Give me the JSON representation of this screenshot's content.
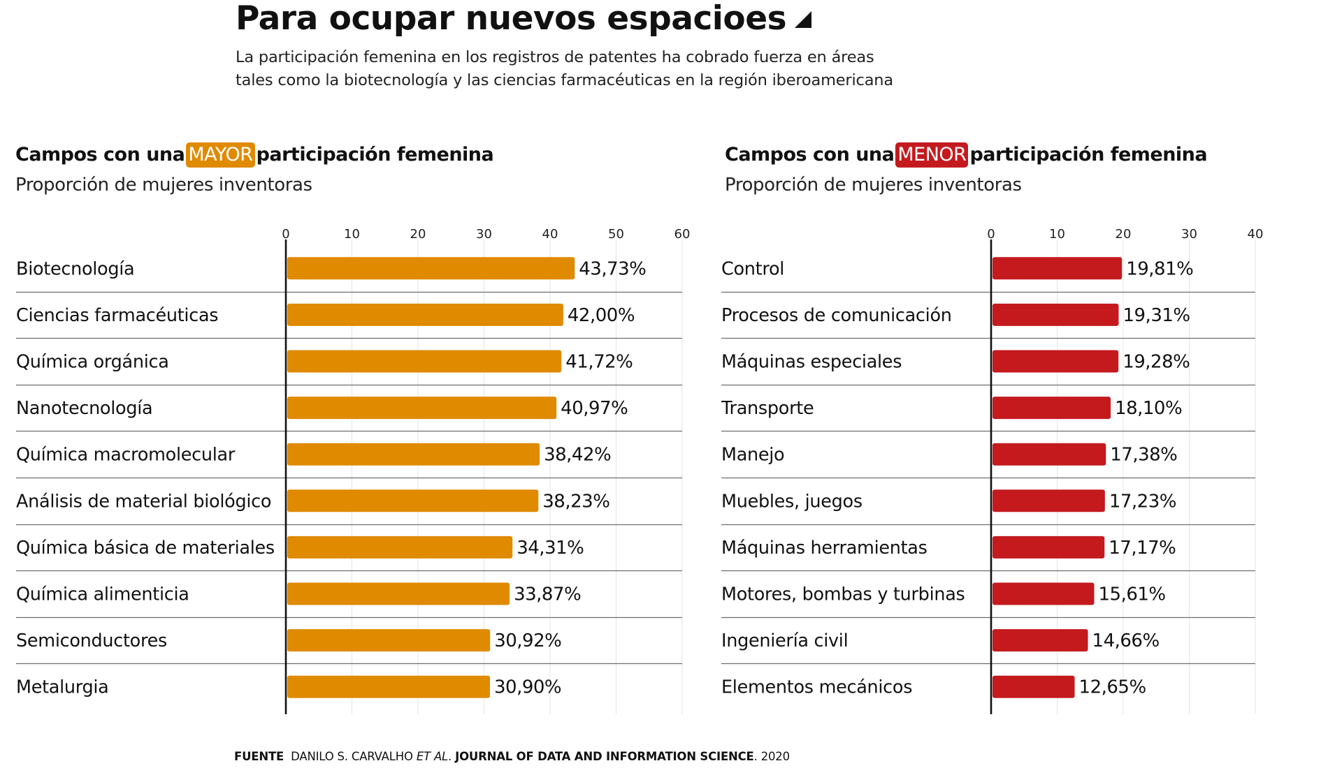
{
  "header": {
    "title": "Para ocupar nuevos espacioes",
    "subtitle_lines": [
      "La participación femenina en los registros de patentes ha cobrado fuerza en áreas",
      "tales como la biotecnología y las ciencias farmacéuticas en la región iberoamericana"
    ]
  },
  "panels": {
    "left": {
      "heading_pre": "Campos con una",
      "badge": "MAYOR",
      "heading_post": "participación femenina",
      "subheading": "Proporción de mujeres inventoras",
      "badge_color": "#E08A00"
    },
    "right": {
      "heading_pre": "Campos con una",
      "badge": "MENOR",
      "heading_post": "participación femenina",
      "subheading": "Proporción de mujeres inventoras",
      "badge_color": "#C41A1E"
    }
  },
  "chart_data": [
    {
      "type": "bar",
      "orientation": "horizontal",
      "title": "Campos con una MAYOR participación femenina",
      "subtitle": "Proporción de mujeres inventoras",
      "xlabel": "",
      "ylabel": "",
      "xlim": [
        0,
        60
      ],
      "xticks": [
        0,
        10,
        20,
        30,
        40,
        50,
        60
      ],
      "grid": true,
      "color": "#E08A00",
      "categories": [
        "Biotecnología",
        "Ciencias farmacéuticas",
        "Química orgánica",
        "Nanotecnología",
        "Química macromolecular",
        "Análisis de material biológico",
        "Química básica de materiales",
        "Química alimenticia",
        "Semiconductores",
        "Metalurgia"
      ],
      "values": [
        43.73,
        42.0,
        41.72,
        40.97,
        38.42,
        38.23,
        34.31,
        33.87,
        30.92,
        30.9
      ],
      "value_labels": [
        "43,73%",
        "42,00%",
        "41,72%",
        "40,97%",
        "38,42%",
        "38,23%",
        "34,31%",
        "33,87%",
        "30,92%",
        "30,90%"
      ]
    },
    {
      "type": "bar",
      "orientation": "horizontal",
      "title": "Campos con una MENOR participación femenina",
      "subtitle": "Proporción de mujeres inventoras",
      "xlabel": "",
      "ylabel": "",
      "xlim": [
        0,
        40
      ],
      "xticks": [
        0,
        10,
        20,
        30,
        40
      ],
      "grid": true,
      "color": "#C41A1E",
      "categories": [
        "Control",
        "Procesos de comunicación",
        "Máquinas especiales",
        "Transporte",
        "Manejo",
        "Muebles, juegos",
        "Máquinas herramientas",
        "Motores, bombas y turbinas",
        "Ingeniería civil",
        "Elementos mecánicos"
      ],
      "values": [
        19.81,
        19.31,
        19.28,
        18.1,
        17.38,
        17.23,
        17.17,
        15.61,
        14.66,
        12.65
      ],
      "value_labels": [
        "19,81%",
        "19,31%",
        "19,28%",
        "18,10%",
        "17,38%",
        "17,23%",
        "17,17%",
        "15,61%",
        "14,66%",
        "12,65%"
      ]
    }
  ],
  "footer": {
    "label": "FUENTE",
    "author": "DANILO S. CARVALHO",
    "etal": "ET AL",
    "dot": ".",
    "journal": "JOURNAL OF DATA AND INFORMATION SCIENCE",
    "year": ". 2020"
  }
}
